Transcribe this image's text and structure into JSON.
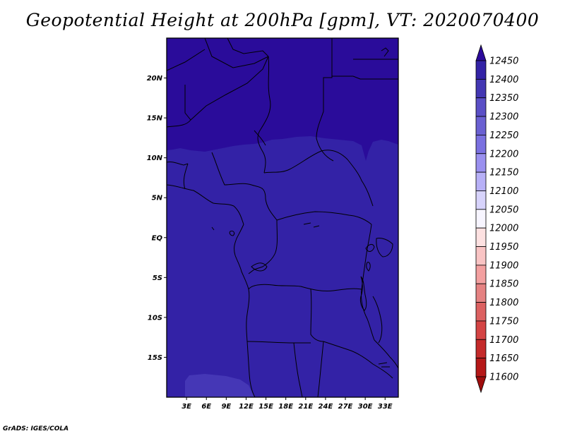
{
  "title": "Geopotential Height at 200hPa [gpm], VT: 2020070400",
  "credit": "GrADS: IGES/COLA",
  "map": {
    "lat_labels": [
      "20N",
      "15N",
      "10N",
      "5N",
      "EQ",
      "5S",
      "10S",
      "15S"
    ],
    "lon_labels": [
      "3E",
      "6E",
      "9E",
      "12E",
      "15E",
      "18E",
      "21E",
      "24E",
      "27E",
      "30E",
      "33E"
    ],
    "lat_range": [
      -20,
      25
    ],
    "lon_range": [
      0,
      35
    ],
    "fill_colors": {
      "north_band": "#2a0c9a",
      "main": "#3322a6",
      "south_patch": "#4537b6"
    },
    "coastline_color": "#000000"
  },
  "colorbar": {
    "levels": [
      "12450",
      "12400",
      "12350",
      "12300",
      "12250",
      "12200",
      "12150",
      "12100",
      "12050",
      "12000",
      "11950",
      "11900",
      "11850",
      "11800",
      "11750",
      "11700",
      "11650",
      "11600"
    ],
    "colors": [
      "#2c0a9b",
      "#3323a6",
      "#4337b3",
      "#5a4fc6",
      "#6a60d2",
      "#7a70e0",
      "#9a90ef",
      "#b7b0f7",
      "#d7d3fb",
      "#f7f5ff",
      "#fde1e1",
      "#f9c4c4",
      "#f3a0a0",
      "#e58282",
      "#dc6161",
      "#d44444",
      "#c42a2a",
      "#b51818",
      "#9f0d0d"
    ]
  }
}
